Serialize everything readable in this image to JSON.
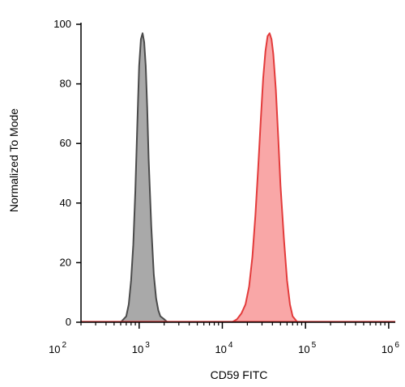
{
  "chart_data": {
    "type": "area",
    "xlabel": "CD59 FITC",
    "ylabel": "Normalized To Mode",
    "x_scale": "log",
    "xlim": [
      200,
      1200000
    ],
    "ylim": [
      0,
      100
    ],
    "y_ticks": [
      0,
      20,
      40,
      60,
      80,
      100
    ],
    "x_ticks": [
      {
        "base": "10",
        "exp": "2",
        "value": 100
      },
      {
        "base": "10",
        "exp": "3",
        "value": 1000
      },
      {
        "base": "10",
        "exp": "4",
        "value": 10000
      },
      {
        "base": "10",
        "exp": "5",
        "value": 100000
      },
      {
        "base": "10",
        "exp": "6",
        "value": 1000000
      }
    ],
    "grid": false,
    "series": [
      {
        "fill": "#a9a9a9",
        "stroke": "#4a4a4a",
        "x": [
          600,
          700,
          750,
          800,
          850,
          900,
          950,
          1000,
          1050,
          1100,
          1150,
          1200,
          1250,
          1300,
          1400,
          1500,
          1600,
          1700,
          1800,
          2000,
          2200
        ],
        "y": [
          0,
          2,
          6,
          14,
          26,
          44,
          66,
          86,
          95,
          97,
          94,
          86,
          72,
          55,
          32,
          16,
          8,
          4,
          2,
          1,
          0
        ]
      },
      {
        "fill": "#f9a7a7",
        "stroke": "#e33b3b",
        "x": [
          13000,
          15000,
          17000,
          19000,
          21000,
          23000,
          25000,
          27000,
          29000,
          31000,
          33000,
          35000,
          37000,
          39000,
          41000,
          44000,
          47000,
          50000,
          55000,
          60000,
          65000,
          70000,
          80000
        ],
        "y": [
          0,
          1,
          3,
          6,
          12,
          22,
          36,
          52,
          68,
          82,
          91,
          96,
          97,
          95,
          90,
          78,
          62,
          46,
          28,
          14,
          6,
          2,
          0
        ]
      }
    ]
  }
}
